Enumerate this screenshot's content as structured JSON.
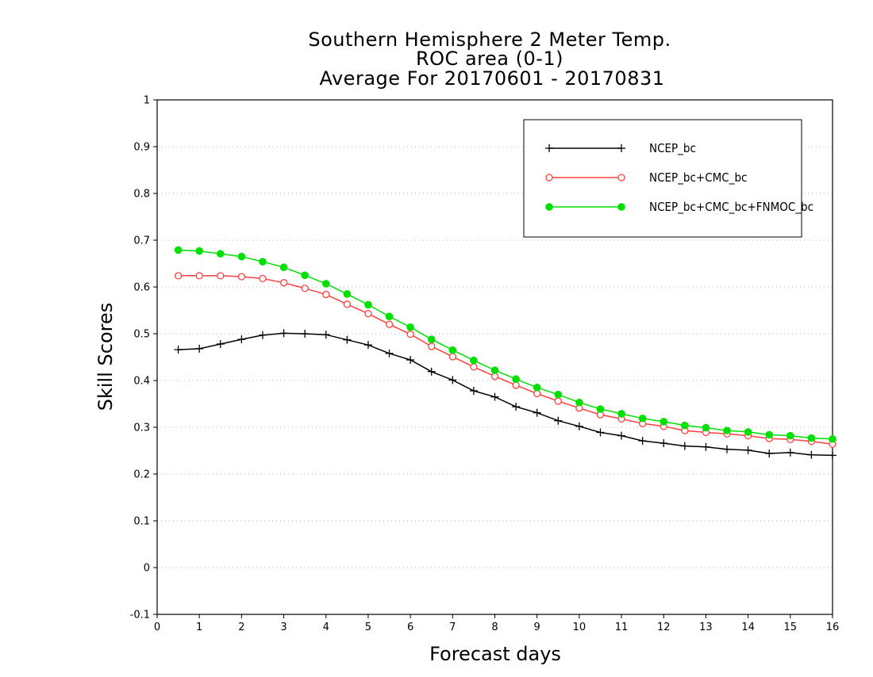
{
  "chart_data": {
    "type": "line",
    "title_lines": [
      "Southern Hemisphere 2 Meter Temp.",
      "ROC area (0-1)",
      "Average For 20170601 - 20170831"
    ],
    "xlabel": "Forecast days",
    "ylabel": "Skill Scores",
    "xlim": [
      0,
      16
    ],
    "ylim": [
      -0.1,
      1
    ],
    "x_ticks": [
      0,
      1,
      2,
      3,
      4,
      5,
      6,
      7,
      8,
      9,
      10,
      11,
      12,
      13,
      14,
      15,
      16
    ],
    "x_tick_labels": [
      "0",
      "1",
      "2",
      "3",
      "4",
      "5",
      "6",
      "7",
      "8",
      "9",
      "10",
      "11",
      "12",
      "13",
      "14",
      "15",
      "16"
    ],
    "y_ticks": [
      -0.1,
      0,
      0.1,
      0.2,
      0.3,
      0.4,
      0.5,
      0.6,
      0.7,
      0.8,
      0.9,
      1
    ],
    "y_tick_labels": [
      "-0.1",
      "0",
      "0.1",
      "0.2",
      "0.3",
      "0.4",
      "0.5",
      "0.6",
      "0.7",
      "0.8",
      "0.9",
      "1"
    ],
    "grid": true,
    "legend_position": "top-right",
    "x": [
      0.5,
      1,
      1.5,
      2,
      2.5,
      3,
      3.5,
      4,
      4.5,
      5,
      5.5,
      6,
      6.5,
      7,
      7.5,
      8,
      8.5,
      9,
      9.5,
      10,
      10.5,
      11,
      11.5,
      12,
      12.5,
      13,
      13.5,
      14,
      14.5,
      15,
      15.5,
      16
    ],
    "series": [
      {
        "name": "NCEP_bc",
        "color": "#000000",
        "marker": "plus",
        "values": [
          0.466,
          0.468,
          0.478,
          0.488,
          0.497,
          0.501,
          0.5,
          0.498,
          0.487,
          0.476,
          0.458,
          0.444,
          0.419,
          0.401,
          0.378,
          0.365,
          0.344,
          0.331,
          0.314,
          0.302,
          0.289,
          0.282,
          0.271,
          0.266,
          0.26,
          0.258,
          0.253,
          0.251,
          0.244,
          0.246,
          0.241,
          0.24
        ]
      },
      {
        "name": "NCEP_bc+CMC_bc",
        "color": "#ff4040",
        "marker": "open-circle",
        "values": [
          0.624,
          0.624,
          0.624,
          0.622,
          0.618,
          0.609,
          0.597,
          0.584,
          0.563,
          0.543,
          0.52,
          0.499,
          0.473,
          0.451,
          0.429,
          0.409,
          0.39,
          0.372,
          0.356,
          0.341,
          0.327,
          0.318,
          0.308,
          0.302,
          0.293,
          0.289,
          0.286,
          0.282,
          0.276,
          0.274,
          0.27,
          0.264
        ]
      },
      {
        "name": "NCEP_bc+CMC_bc+FNMOC_bc",
        "color": "#00e000",
        "marker": "filled-circle",
        "values": [
          0.679,
          0.677,
          0.671,
          0.665,
          0.654,
          0.642,
          0.625,
          0.607,
          0.585,
          0.562,
          0.537,
          0.514,
          0.488,
          0.465,
          0.443,
          0.422,
          0.403,
          0.385,
          0.37,
          0.353,
          0.339,
          0.329,
          0.319,
          0.312,
          0.304,
          0.299,
          0.293,
          0.29,
          0.284,
          0.282,
          0.277,
          0.275
        ]
      }
    ]
  }
}
